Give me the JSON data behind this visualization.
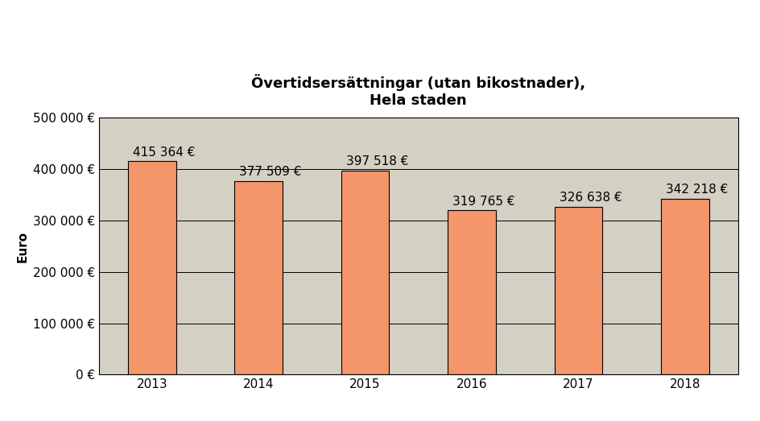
{
  "title": "Övertidsersättningar (utan bikostnader),\nHela staden",
  "ylabel": "Euro",
  "categories": [
    2013,
    2014,
    2015,
    2016,
    2017,
    2018
  ],
  "values": [
    415364,
    377509,
    397518,
    319765,
    326638,
    342218
  ],
  "labels": [
    "415 364 €",
    "377 509 €",
    "397 518 €",
    "319 765 €",
    "326 638 €",
    "342 218 €"
  ],
  "bar_color": "#F4956A",
  "bar_edge_color": "#000000",
  "bar_edge_width": 0.8,
  "plot_bg_color": "#D4D0C4",
  "fig_bg_color": "#FFFFFF",
  "ylim": [
    0,
    500000
  ],
  "yticks": [
    0,
    100000,
    200000,
    300000,
    400000,
    500000
  ],
  "ytick_labels": [
    "0 €",
    "100 000 €",
    "200 000 €",
    "300 000 €",
    "400 000 €",
    "500 000 €"
  ],
  "title_fontsize": 13,
  "tick_fontsize": 11,
  "ylabel_fontsize": 11,
  "bar_label_fontsize": 11,
  "bar_width": 0.45
}
